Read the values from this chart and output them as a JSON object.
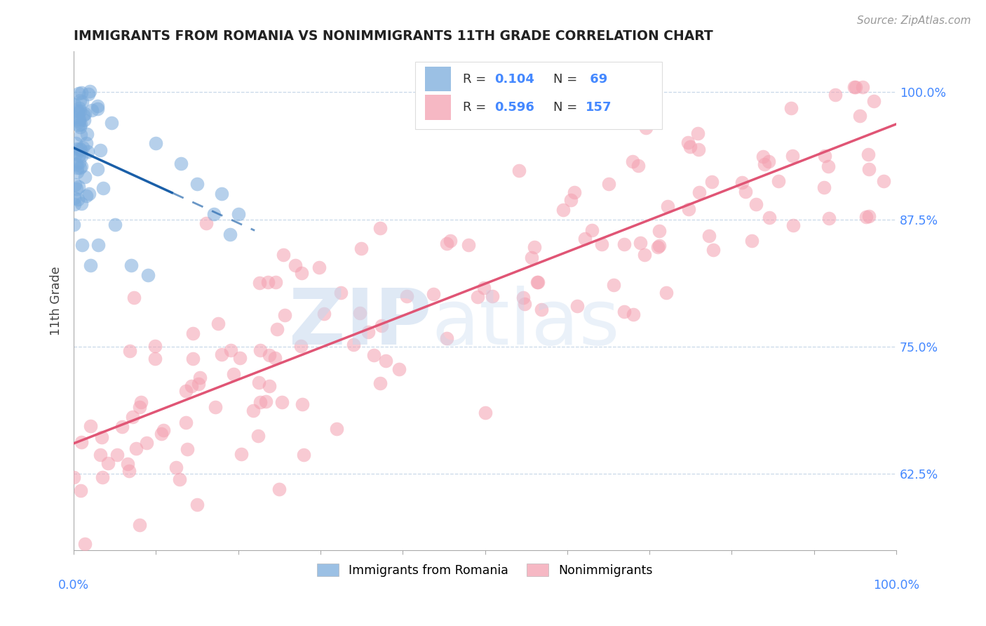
{
  "title": "IMMIGRANTS FROM ROMANIA VS NONIMMIGRANTS 11TH GRADE CORRELATION CHART",
  "source": "Source: ZipAtlas.com",
  "ylabel": "11th Grade",
  "ytick_labels": [
    "62.5%",
    "75.0%",
    "87.5%",
    "100.0%"
  ],
  "ytick_values": [
    0.625,
    0.75,
    0.875,
    1.0
  ],
  "xlim": [
    0.0,
    1.0
  ],
  "ylim": [
    0.55,
    1.04
  ],
  "blue_color": "#7aabdc",
  "pink_color": "#f4a0b0",
  "blue_line_color": "#1a5fa8",
  "pink_line_color": "#e05575",
  "legend_r_blue": "0.104",
  "legend_n_blue": "69",
  "legend_r_pink": "0.596",
  "legend_n_pink": "157",
  "watermark_zip_color": "#c5d8ee",
  "watermark_atlas_color": "#c5d8ee",
  "grid_color": "#c8d8e8",
  "right_label_color": "#4488ff",
  "source_color": "#999999",
  "title_color": "#222222"
}
